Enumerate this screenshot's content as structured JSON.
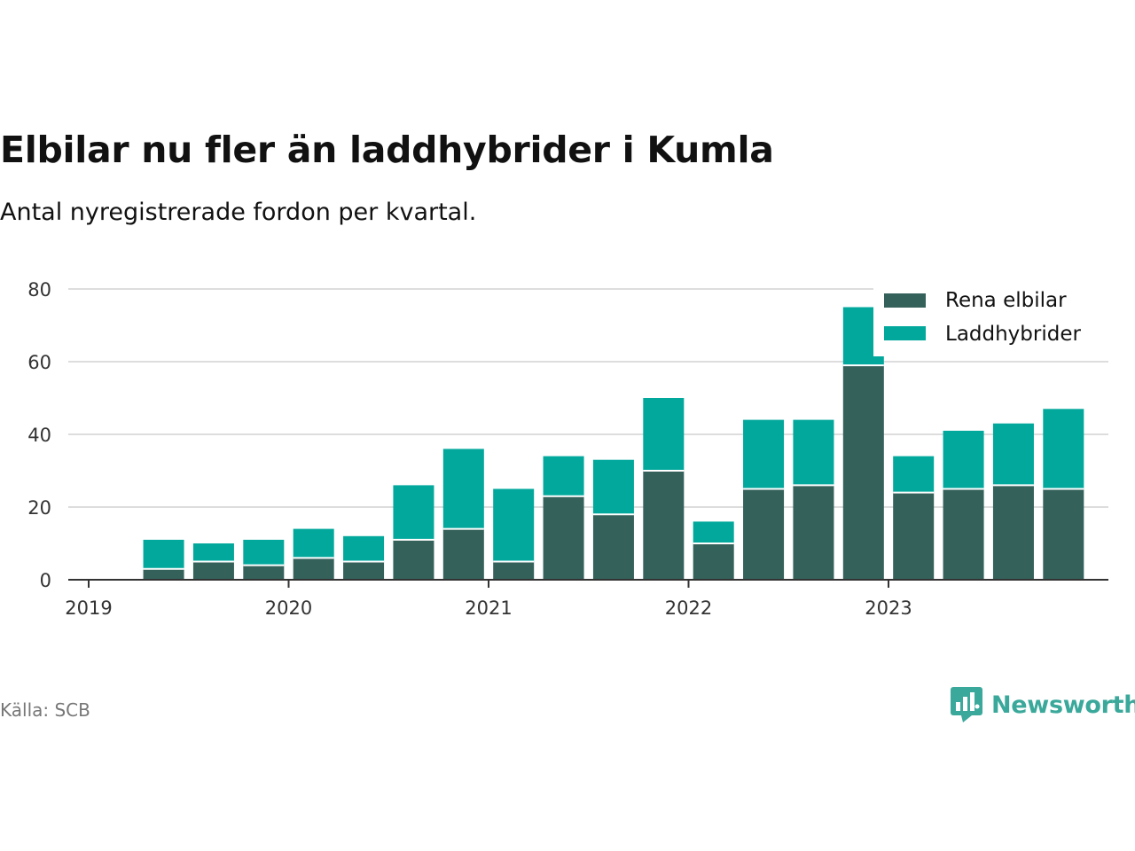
{
  "title": "Elbilar nu fler än laddhybrider i Kumla",
  "subtitle": "Antal nyregistrerade fordon per kvartal.",
  "source": "Källa: SCB",
  "brand": "Newsworthy",
  "colors": {
    "rena_elbilar": "#35615b",
    "laddhybrider": "#02a89c",
    "brand": "#3aa89a",
    "grid": "#dddddd"
  },
  "chart_data": {
    "type": "bar",
    "stacked": true,
    "categories": [
      "2019 Q2",
      "2019 Q3",
      "2019 Q4",
      "2020 Q1",
      "2020 Q2",
      "2020 Q3",
      "2020 Q4",
      "2021 Q1",
      "2021 Q2",
      "2021 Q3",
      "2021 Q4",
      "2022 Q1",
      "2022 Q2",
      "2022 Q3",
      "2022 Q4",
      "2023 Q1",
      "2023 Q2",
      "2023 Q3",
      "2023 Q4"
    ],
    "series": [
      {
        "name": "Rena elbilar",
        "values": [
          3,
          5,
          4,
          6,
          5,
          11,
          14,
          5,
          23,
          18,
          30,
          10,
          25,
          26,
          59,
          24,
          25,
          26,
          25
        ]
      },
      {
        "name": "Laddhybrider",
        "values": [
          8,
          5,
          7,
          8,
          7,
          15,
          22,
          20,
          11,
          15,
          20,
          6,
          19,
          18,
          16,
          10,
          16,
          17,
          22
        ]
      }
    ],
    "xticks": [
      "2019",
      "2020",
      "2021",
      "2022",
      "2023"
    ],
    "yticks": [
      0,
      20,
      40,
      60,
      80
    ],
    "ylim": [
      0,
      80
    ],
    "xlabel": "",
    "ylabel": "",
    "legend_position": "top-right"
  }
}
